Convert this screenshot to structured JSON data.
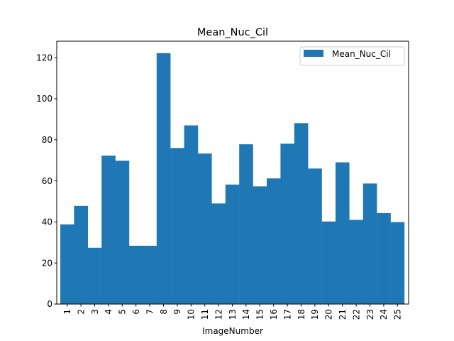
{
  "chart_data": {
    "type": "bar",
    "title": "Mean_Nuc_Cil",
    "xlabel": "ImageNumber",
    "ylabel": "",
    "categories": [
      "1",
      "2",
      "3",
      "4",
      "5",
      "6",
      "7",
      "8",
      "9",
      "10",
      "11",
      "12",
      "13",
      "14",
      "15",
      "16",
      "17",
      "18",
      "19",
      "20",
      "21",
      "22",
      "23",
      "24",
      "25"
    ],
    "series": [
      {
        "name": "Mean_Nuc_Cil",
        "color": "#1f77b4",
        "values": [
          38.8,
          47.8,
          27.4,
          72.3,
          69.8,
          28.4,
          28.4,
          122.2,
          76.0,
          87.0,
          73.3,
          49.0,
          58.2,
          77.8,
          57.3,
          61.2,
          78.1,
          88.1,
          66.0,
          40.2,
          69.0,
          41.0,
          58.7,
          44.3,
          39.9
        ]
      }
    ],
    "y_ticks": [
      0,
      20,
      40,
      60,
      80,
      100,
      120
    ],
    "ylim": [
      0,
      128
    ],
    "grid": false,
    "legend": "upper right"
  }
}
